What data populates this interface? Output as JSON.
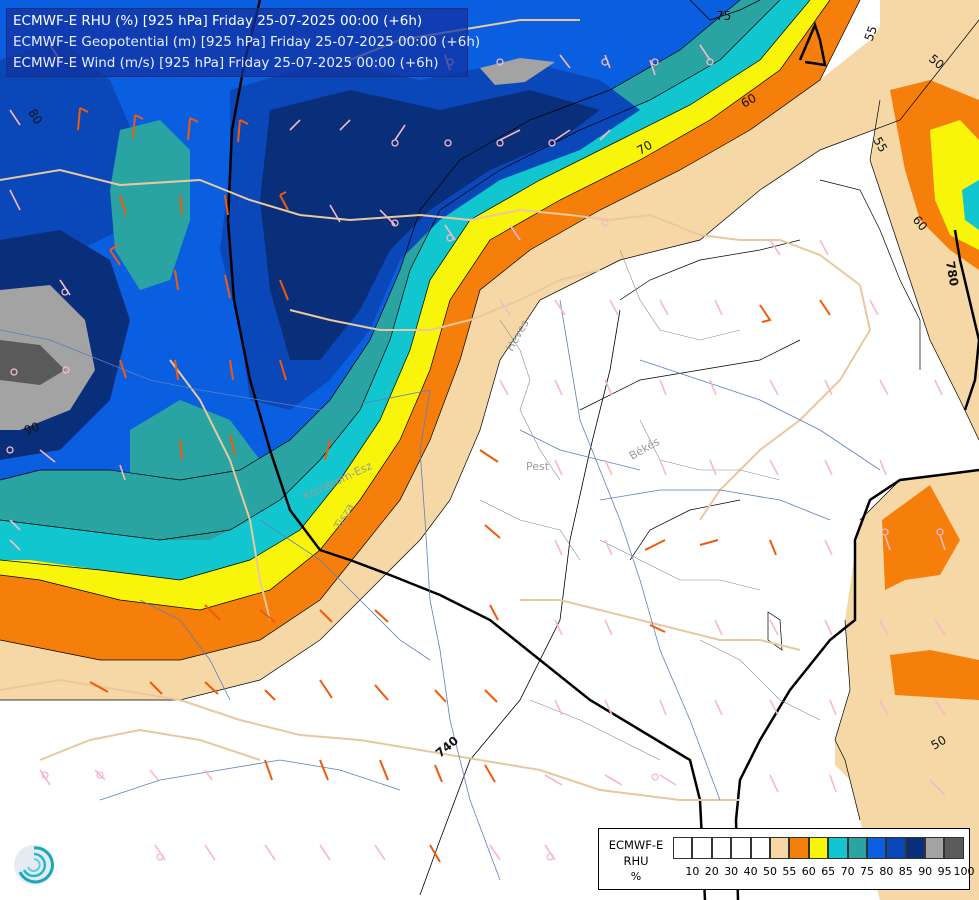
{
  "header": {
    "line1": "ECMWF-E RHU (%) [925 hPa] Friday 25-07-2025 00:00 (+6h)",
    "line2": "ECMWF-E Geopotential (m) [925 hPa] Friday 25-07-2025 00:00 (+6h)",
    "line3": "ECMWF-E Wind (m/s) [925 hPa] Friday 25-07-2025 00:00 (+6h)"
  },
  "contour_labels": {
    "c75": "75",
    "c60a": "60",
    "c70": "70",
    "c55a": "55",
    "c50a": "50",
    "c55b": "55",
    "c60b": "60",
    "c780": "780",
    "c80": "80",
    "c90": "90",
    "c50b": "50",
    "c740": "740"
  },
  "place_labels": {
    "pest": "Pest",
    "bekes": "Békés",
    "heves": "Heves",
    "tisza": "Tisza",
    "komarom": "Komárom-Esz"
  },
  "legend": {
    "title_line1": "ECMWF-E",
    "title_line2": "RHU",
    "unit": "%",
    "colors": [
      "#ffffff",
      "#ffffff",
      "#ffffff",
      "#ffffff",
      "#ffffff",
      "#f6d8a6",
      "#f57f0a",
      "#f9f50a",
      "#12c6cf",
      "#2aa3a3",
      "#0a5fe0",
      "#0a47b8",
      "#0a2f7a",
      "#a3a3a3",
      "#5a5a5a"
    ],
    "ticks": [
      "10",
      "20",
      "30",
      "40",
      "50",
      "55",
      "60",
      "65",
      "70",
      "75",
      "80",
      "85",
      "90",
      "95",
      "100"
    ]
  },
  "logo_icon": "ecmwf-logo-icon"
}
